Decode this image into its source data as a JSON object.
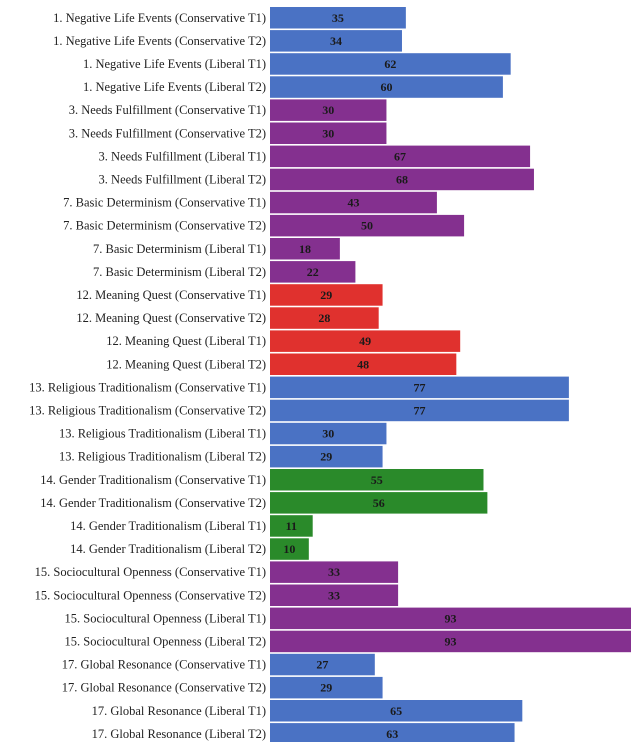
{
  "chart_data": {
    "type": "bar",
    "orientation": "horizontal",
    "title": "",
    "xlabel": "",
    "ylabel": "",
    "xlim": [
      0,
      93
    ],
    "grid": false,
    "legend": "none",
    "colors": {
      "blue": "#4a72c4",
      "purple": "#84308f",
      "red": "#e0312e",
      "green": "#2a8a2a"
    },
    "categories": [
      "1. Negative Life Events (Conservative T1)",
      "1. Negative Life Events (Conservative T2)",
      "1. Negative Life Events (Liberal T1)",
      "1. Negative Life Events (Liberal T2)",
      "3. Needs Fulfillment (Conservative T1)",
      "3. Needs Fulfillment (Conservative T2)",
      "3. Needs Fulfillment (Liberal T1)",
      "3. Needs Fulfillment (Liberal T2)",
      "7. Basic Determinism (Conservative T1)",
      "7. Basic Determinism (Conservative T2)",
      "7. Basic Determinism (Liberal T1)",
      "7. Basic Determinism (Liberal T2)",
      "12. Meaning Quest (Conservative T1)",
      "12. Meaning Quest (Conservative T2)",
      "12. Meaning Quest (Liberal T1)",
      "12. Meaning Quest (Liberal T2)",
      "13. Religious Traditionalism (Conservative T1)",
      "13. Religious Traditionalism (Conservative T2)",
      "13. Religious Traditionalism (Liberal T1)",
      "13. Religious Traditionalism (Liberal T2)",
      "14. Gender Traditionalism (Conservative T1)",
      "14. Gender Traditionalism (Conservative T2)",
      "14. Gender Traditionalism (Liberal T1)",
      "14. Gender Traditionalism (Liberal T2)",
      "15. Sociocultural Openness (Conservative T1)",
      "15. Sociocultural Openness (Conservative T2)",
      "15. Sociocultural Openness (Liberal T1)",
      "15. Sociocultural Openness (Liberal T2)",
      "17. Global Resonance (Conservative T1)",
      "17. Global Resonance (Conservative T2)",
      "17. Global Resonance (Liberal T1)",
      "17. Global Resonance (Liberal T2)"
    ],
    "values": [
      35,
      34,
      62,
      60,
      30,
      30,
      67,
      68,
      43,
      50,
      18,
      22,
      29,
      28,
      49,
      48,
      77,
      77,
      30,
      29,
      55,
      56,
      11,
      10,
      33,
      33,
      93,
      93,
      27,
      29,
      65,
      63
    ],
    "bar_colors": [
      "blue",
      "blue",
      "blue",
      "blue",
      "purple",
      "purple",
      "purple",
      "purple",
      "purple",
      "purple",
      "purple",
      "purple",
      "red",
      "red",
      "red",
      "red",
      "blue",
      "blue",
      "blue",
      "blue",
      "green",
      "green",
      "green",
      "green",
      "purple",
      "purple",
      "purple",
      "purple",
      "blue",
      "blue",
      "blue",
      "blue"
    ]
  }
}
